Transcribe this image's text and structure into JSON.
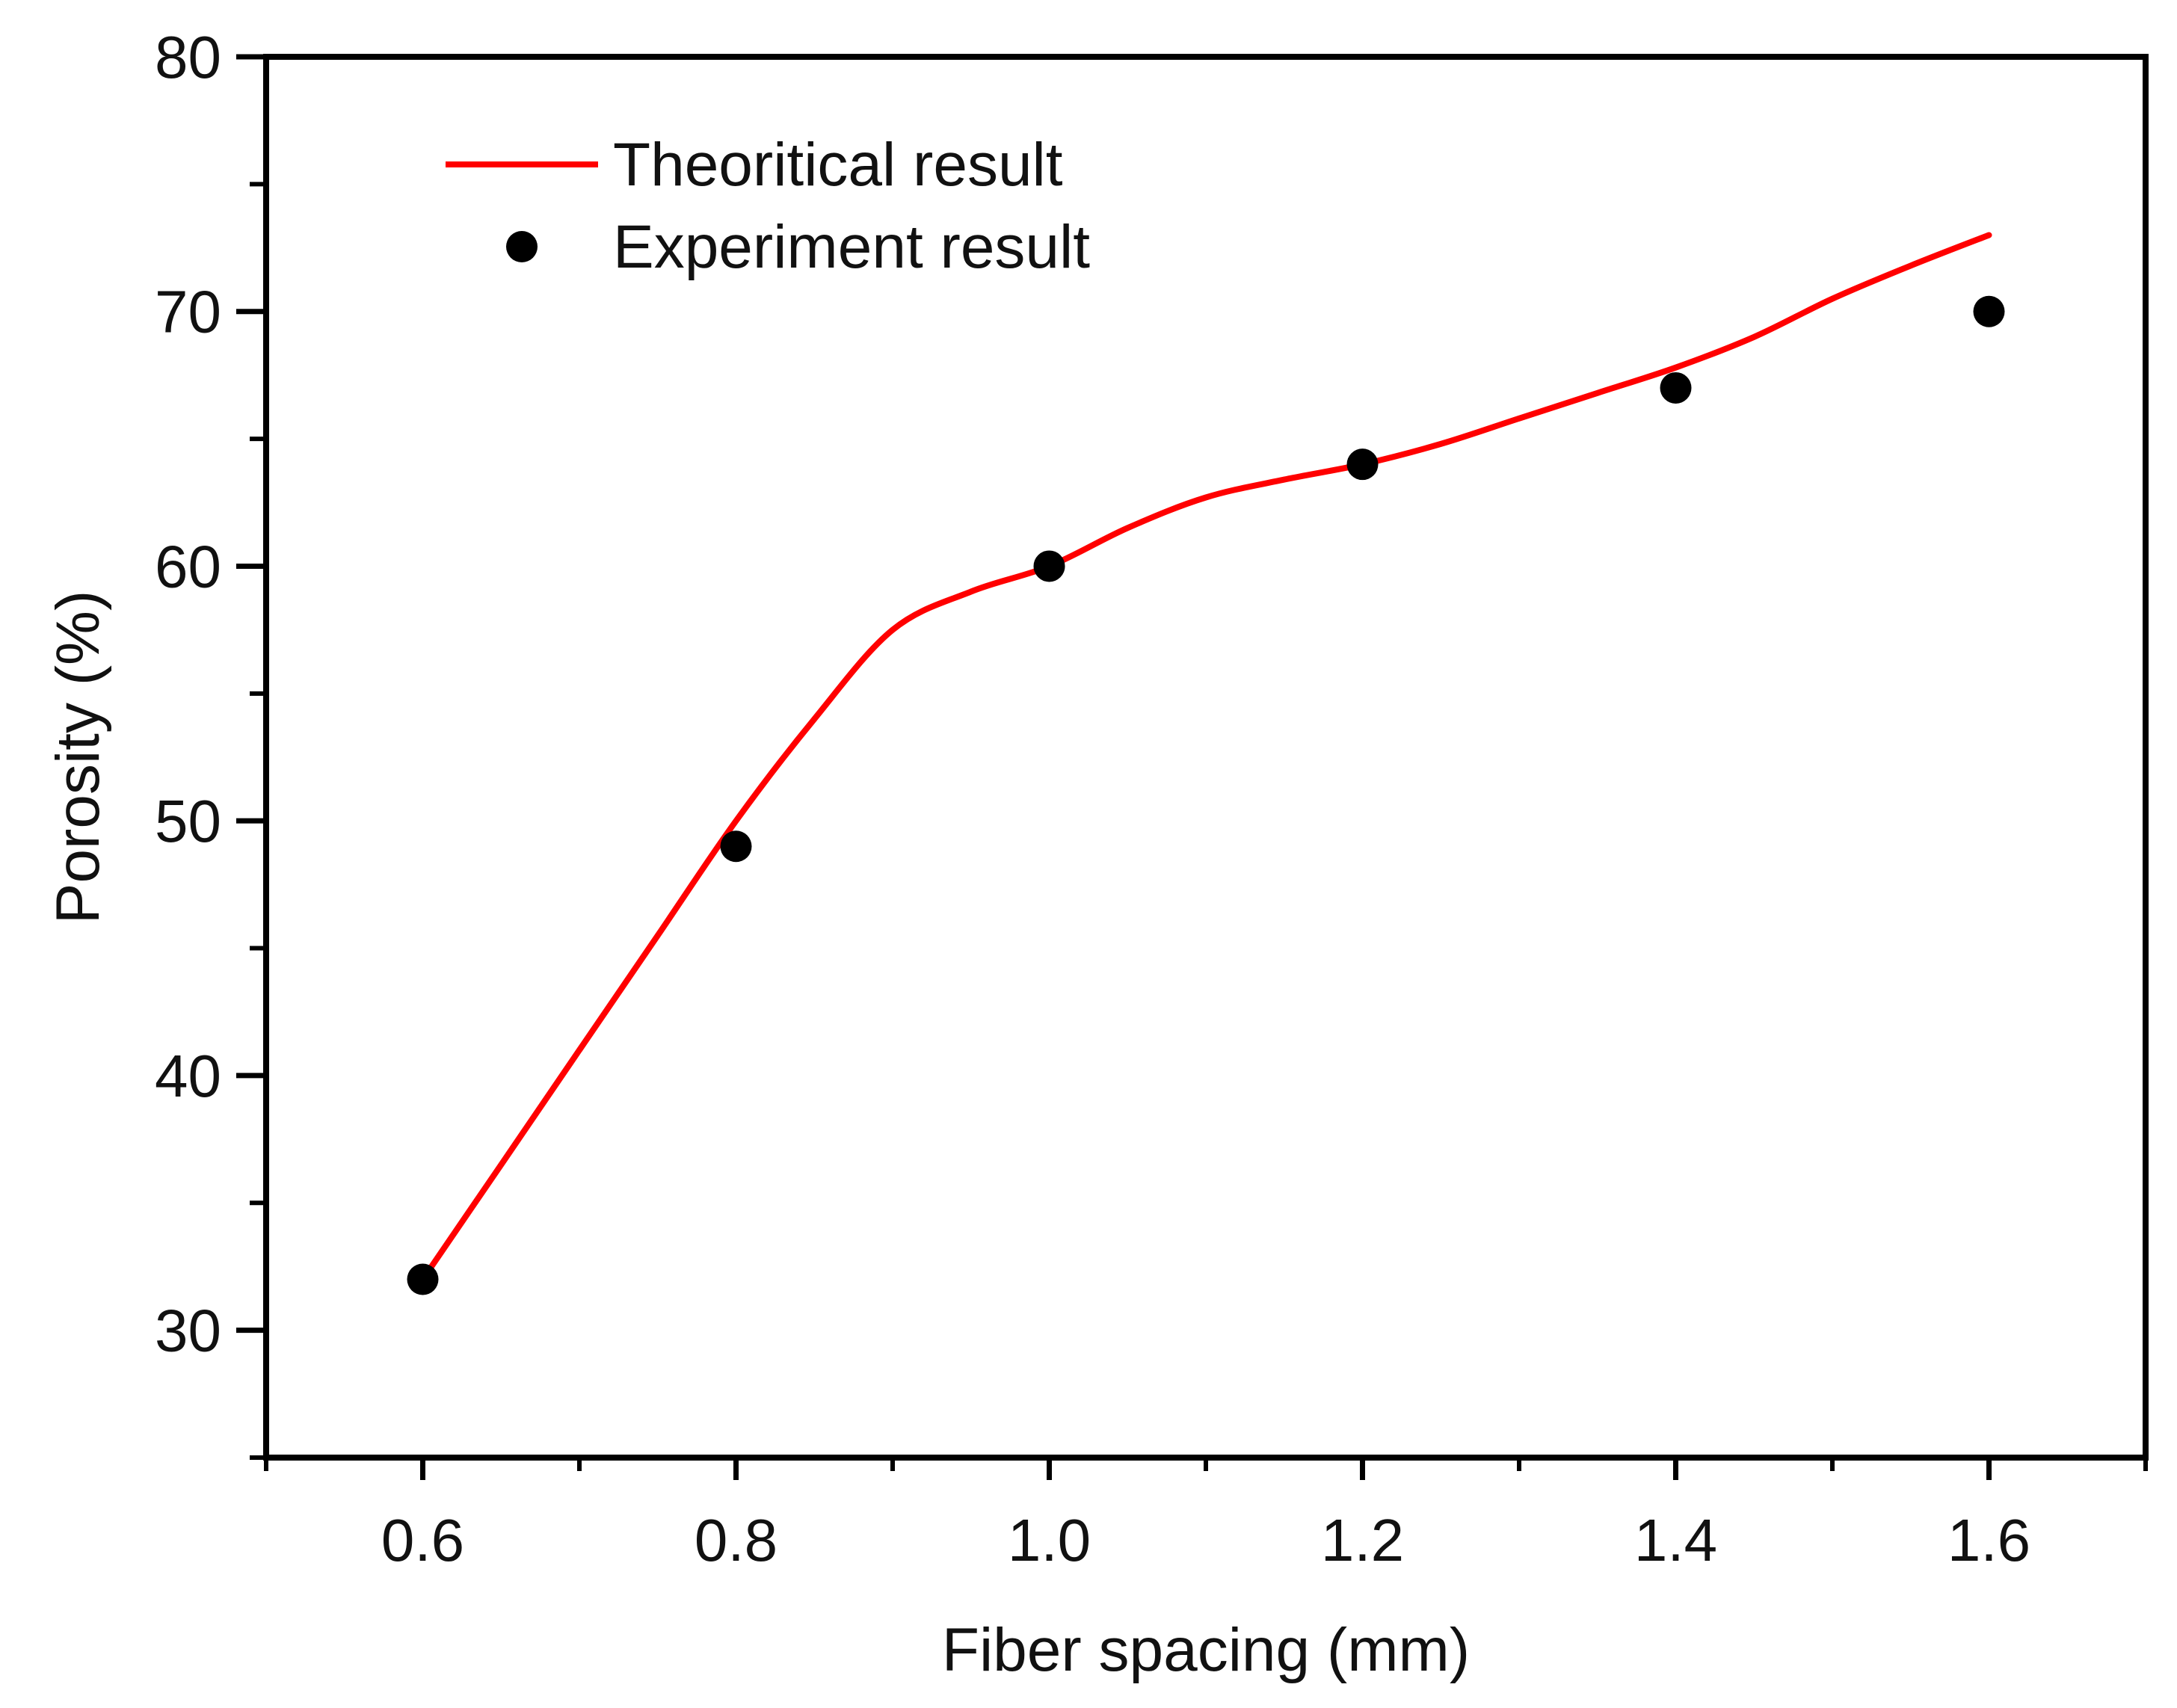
{
  "chart_data": {
    "type": "line",
    "title": "",
    "xlabel": "Fiber spacing (mm)",
    "ylabel": "Porosity (%)",
    "xlim": [
      0.5,
      1.7
    ],
    "ylim": [
      25,
      80
    ],
    "x_major_ticks": [
      0.6,
      0.8,
      1.0,
      1.2,
      1.4,
      1.6
    ],
    "x_tick_labels": [
      "0.6",
      "0.8",
      "1.0",
      "1.2",
      "1.4",
      "1.6"
    ],
    "x_minor_ticks": [
      0.5,
      0.7,
      0.9,
      1.1,
      1.3,
      1.5,
      1.7
    ],
    "y_major_ticks": [
      30,
      40,
      50,
      60,
      70,
      80
    ],
    "y_tick_labels": [
      "30",
      "40",
      "50",
      "60",
      "70",
      "80"
    ],
    "y_minor_ticks": [
      25,
      35,
      45,
      55,
      65,
      75
    ],
    "grid": false,
    "legend_position": "top-left",
    "series": [
      {
        "name": "Theoritical result",
        "kind": "line",
        "color": "#ff0000",
        "x": [
          0.6,
          0.65,
          0.7,
          0.75,
          0.8,
          0.85,
          0.9,
          0.95,
          1.0,
          1.05,
          1.1,
          1.15,
          1.2,
          1.25,
          1.3,
          1.35,
          1.4,
          1.45,
          1.5,
          1.55,
          1.6
        ],
        "y": [
          32.0,
          36.5,
          41.0,
          45.5,
          50.0,
          54.0,
          57.5,
          59.0,
          60.0,
          61.5,
          62.7,
          63.4,
          64.0,
          64.8,
          65.8,
          66.8,
          67.8,
          69.0,
          70.5,
          71.8,
          73.0
        ]
      },
      {
        "name": "Experiment result",
        "kind": "scatter",
        "color": "#000000",
        "x": [
          0.6,
          0.8,
          1.0,
          1.2,
          1.4,
          1.6
        ],
        "y": [
          32,
          49,
          60,
          64,
          67,
          70
        ]
      }
    ]
  }
}
